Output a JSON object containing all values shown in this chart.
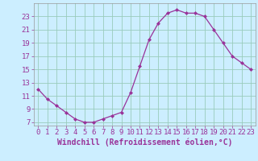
{
  "x": [
    0,
    1,
    2,
    3,
    4,
    5,
    6,
    7,
    8,
    9,
    10,
    11,
    12,
    13,
    14,
    15,
    16,
    17,
    18,
    19,
    20,
    21,
    22,
    23
  ],
  "y": [
    12.0,
    10.5,
    9.5,
    8.5,
    7.5,
    7.0,
    7.0,
    7.5,
    8.0,
    8.5,
    11.5,
    15.5,
    19.5,
    22.0,
    23.5,
    24.0,
    23.5,
    23.5,
    23.0,
    21.0,
    19.0,
    17.0,
    16.0,
    15.0
  ],
  "line_color": "#993399",
  "marker": "D",
  "marker_size": 2,
  "bg_color": "#cceeff",
  "grid_color": "#99ccbb",
  "xlabel": "Windchill (Refroidissement éolien,°C)",
  "xlabel_color": "#993399",
  "tick_color": "#993399",
  "ylim": [
    6.5,
    25.0
  ],
  "yticks": [
    7,
    9,
    11,
    13,
    15,
    17,
    19,
    21,
    23
  ],
  "xlim": [
    -0.5,
    23.5
  ],
  "xticks": [
    0,
    1,
    2,
    3,
    4,
    5,
    6,
    7,
    8,
    9,
    10,
    11,
    12,
    13,
    14,
    15,
    16,
    17,
    18,
    19,
    20,
    21,
    22,
    23
  ],
  "tick_fontsize": 6.5,
  "xlabel_fontsize": 7.0
}
